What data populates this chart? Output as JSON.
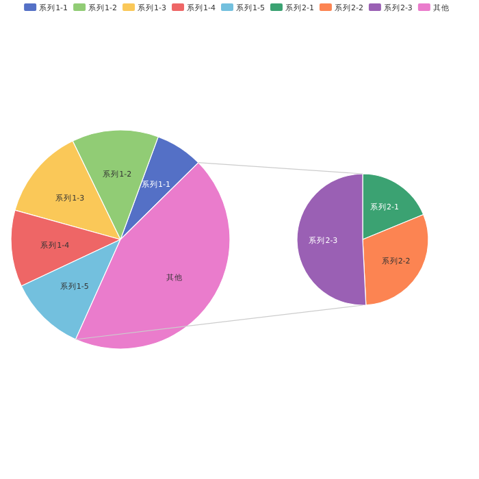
{
  "chart_data": [
    {
      "type": "pie",
      "legend": "top",
      "categories": [
        "系列1-1",
        "系列1-2",
        "系列1-3",
        "系列1-4",
        "系列1-5",
        "其他"
      ],
      "values": [
        7,
        12.8,
        13.5,
        11.3,
        11.3,
        44.1
      ],
      "colors": [
        "#5470c6",
        "#91cc75",
        "#fac858",
        "#ee6666",
        "#73c0de",
        "#ea7ccc"
      ]
    },
    {
      "type": "pie",
      "legend": "top",
      "categories": [
        "系列2-1",
        "系列2-2",
        "系列2-3"
      ],
      "values": [
        18.8,
        30.4,
        50.8
      ],
      "colors": [
        "#3ba272",
        "#fc8452",
        "#9a60b4"
      ]
    }
  ]
}
